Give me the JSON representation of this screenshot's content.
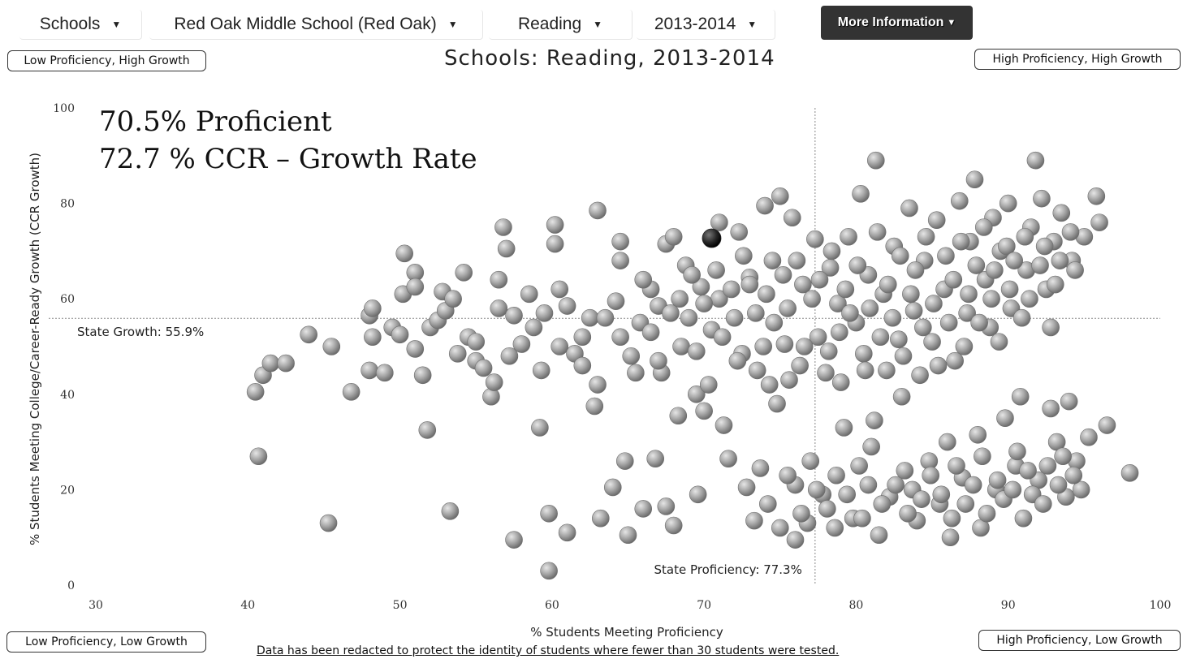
{
  "selectors": {
    "level": "Schools",
    "school": "Red Oak Middle School (Red Oak)",
    "subject": "Reading",
    "year": "2013-2014"
  },
  "more_info_label": "More Information",
  "quadrants": {
    "top_left": "Low Proficiency, High Growth",
    "top_right": "High Proficiency, High Growth",
    "bottom_left": "Low Proficiency, Low Growth",
    "bottom_right": "High Proficiency, Low Growth"
  },
  "page_title": "Schools: Reading, 2013-2014",
  "footnote": "Data has been redacted to protect the identity of students where fewer than 30 students were tested.",
  "colors": {
    "point": "#9a9a9a",
    "highlight": "#222222",
    "reference_line": "#888888"
  },
  "chart_data": {
    "type": "scatter",
    "title": "Schools: Reading, 2013-2014",
    "xlabel": "% Students Meeting Proficiency",
    "ylabel": "% Students Meeting College/Career-Ready Growth (CCR Growth)",
    "xlim": [
      30,
      100
    ],
    "ylim": [
      0,
      100
    ],
    "xticks": [
      30,
      40,
      50,
      60,
      70,
      80,
      90,
      100
    ],
    "yticks": [
      0,
      20,
      40,
      60,
      80,
      100
    ],
    "stat_lines": [
      "70.5% Proficient",
      "72.7 % CCR – Growth Rate"
    ],
    "reference_lines": {
      "x": {
        "value": 77.3,
        "label": "State Proficiency: 77.3%"
      },
      "y": {
        "value": 55.9,
        "label": "State Growth: 55.9%"
      }
    },
    "highlight": {
      "name": "Red Oak Middle School (Red Oak)",
      "x": 70.5,
      "y": 72.7
    },
    "grid": false,
    "points": [
      [
        40.5,
        40.5
      ],
      [
        40.7,
        27
      ],
      [
        41,
        44
      ],
      [
        41.5,
        46.5
      ],
      [
        42.5,
        46.5
      ],
      [
        44,
        52.5
      ],
      [
        45.3,
        13
      ],
      [
        45.5,
        50
      ],
      [
        46.8,
        40.5
      ],
      [
        48,
        56.5
      ],
      [
        48.2,
        58
      ],
      [
        48.2,
        52
      ],
      [
        48,
        45
      ],
      [
        49,
        44.5
      ],
      [
        49.5,
        54
      ],
      [
        50,
        52.5
      ],
      [
        50.3,
        69.5
      ],
      [
        50.2,
        61
      ],
      [
        51,
        65.5
      ],
      [
        51,
        62.5
      ],
      [
        51,
        49.5
      ],
      [
        51.5,
        44
      ],
      [
        51.8,
        32.5
      ],
      [
        52,
        54
      ],
      [
        52.5,
        55.5
      ],
      [
        52.8,
        61.5
      ],
      [
        53,
        57.5
      ],
      [
        53.3,
        15.5
      ],
      [
        53.5,
        60
      ],
      [
        53.8,
        48.5
      ],
      [
        54.2,
        65.5
      ],
      [
        54.5,
        52
      ],
      [
        55,
        47
      ],
      [
        55,
        51
      ],
      [
        55.5,
        45.5
      ],
      [
        56,
        39.5
      ],
      [
        56.2,
        42.5
      ],
      [
        56.5,
        58
      ],
      [
        56.5,
        64
      ],
      [
        56.8,
        75
      ],
      [
        57,
        70.5
      ],
      [
        57.2,
        48
      ],
      [
        57.5,
        56.5
      ],
      [
        57.5,
        9.5
      ],
      [
        58,
        50.5
      ],
      [
        58.5,
        61
      ],
      [
        58.8,
        54
      ],
      [
        59.2,
        33
      ],
      [
        59.3,
        45
      ],
      [
        59.5,
        57
      ],
      [
        59.8,
        15
      ],
      [
        59.8,
        3
      ],
      [
        60.2,
        75.5
      ],
      [
        60.2,
        71.5
      ],
      [
        60.5,
        62
      ],
      [
        60.5,
        50
      ],
      [
        61,
        11
      ],
      [
        61,
        58.5
      ],
      [
        61.5,
        48.5
      ],
      [
        62,
        46
      ],
      [
        62,
        52
      ],
      [
        62.5,
        56
      ],
      [
        62.8,
        37.5
      ],
      [
        63,
        42
      ],
      [
        63,
        78.5
      ],
      [
        63.2,
        14
      ],
      [
        63.5,
        56
      ],
      [
        64,
        20.5
      ],
      [
        64.2,
        59.5
      ],
      [
        64.5,
        52
      ],
      [
        64.5,
        72
      ],
      [
        64.5,
        68
      ],
      [
        64.8,
        26
      ],
      [
        65,
        10.5
      ],
      [
        65.2,
        48
      ],
      [
        65.5,
        44.5
      ],
      [
        65.8,
        55
      ],
      [
        66,
        16
      ],
      [
        66.5,
        62
      ],
      [
        66.8,
        26.5
      ],
      [
        67,
        58.5
      ],
      [
        67.2,
        44.5
      ],
      [
        67.5,
        71.5
      ],
      [
        67.5,
        16.5
      ],
      [
        68,
        12.5
      ],
      [
        68,
        73
      ],
      [
        68.3,
        35.5
      ],
      [
        68.5,
        50
      ],
      [
        68.8,
        67
      ],
      [
        69,
        56
      ],
      [
        69.5,
        40
      ],
      [
        69.6,
        19
      ],
      [
        69.8,
        62.5
      ],
      [
        70,
        36.5
      ],
      [
        70.3,
        42
      ],
      [
        70.5,
        53.5
      ],
      [
        71,
        76
      ],
      [
        71,
        60
      ],
      [
        71.3,
        33.5
      ],
      [
        71.6,
        26.5
      ],
      [
        72,
        56
      ],
      [
        72.3,
        74
      ],
      [
        72.5,
        48.5
      ],
      [
        72.8,
        20.5
      ],
      [
        73,
        64.5
      ],
      [
        73,
        63
      ],
      [
        73.3,
        13.5
      ],
      [
        73.5,
        45
      ],
      [
        73.7,
        24.5
      ],
      [
        74,
        79.5
      ],
      [
        74.3,
        42
      ],
      [
        74.5,
        68
      ],
      [
        74.8,
        38
      ],
      [
        75,
        81.5
      ],
      [
        75,
        12
      ],
      [
        75.3,
        50.5
      ],
      [
        75.5,
        58
      ],
      [
        75.8,
        77
      ],
      [
        76,
        9.5
      ],
      [
        76,
        21
      ],
      [
        76.3,
        46
      ],
      [
        76.5,
        63
      ],
      [
        76.8,
        13
      ],
      [
        77,
        26
      ],
      [
        77.3,
        72.5
      ],
      [
        77.5,
        52
      ],
      [
        77.8,
        19
      ],
      [
        78,
        44.5
      ],
      [
        78.3,
        66.5
      ],
      [
        78.6,
        12
      ],
      [
        78.8,
        59
      ],
      [
        79,
        42.5
      ],
      [
        79.2,
        33
      ],
      [
        79.5,
        73
      ],
      [
        79.8,
        14
      ],
      [
        80,
        55
      ],
      [
        80.2,
        25
      ],
      [
        80.3,
        82
      ],
      [
        80.5,
        48.5
      ],
      [
        80.8,
        65
      ],
      [
        81,
        29
      ],
      [
        81.2,
        34.5
      ],
      [
        81.3,
        89
      ],
      [
        81.5,
        10.5
      ],
      [
        81.8,
        61
      ],
      [
        82,
        45
      ],
      [
        82.2,
        18.5
      ],
      [
        82.5,
        71
      ],
      [
        82.8,
        51.5
      ],
      [
        83,
        39.5
      ],
      [
        83.2,
        24
      ],
      [
        83.5,
        79
      ],
      [
        83.8,
        57.5
      ],
      [
        84,
        13.5
      ],
      [
        84.2,
        44
      ],
      [
        84.5,
        68
      ],
      [
        84.8,
        26
      ],
      [
        85,
        51
      ],
      [
        85.3,
        76.5
      ],
      [
        85.5,
        17
      ],
      [
        85.8,
        62
      ],
      [
        86,
        30
      ],
      [
        86.2,
        10
      ],
      [
        86.5,
        47
      ],
      [
        86.8,
        80.5
      ],
      [
        87,
        22.5
      ],
      [
        87.3,
        57
      ],
      [
        87.5,
        72
      ],
      [
        87.8,
        85
      ],
      [
        88,
        31.5
      ],
      [
        88.2,
        12
      ],
      [
        88.5,
        64
      ],
      [
        88.8,
        54
      ],
      [
        89,
        77
      ],
      [
        89.2,
        20
      ],
      [
        89.5,
        70
      ],
      [
        89.8,
        35
      ],
      [
        90,
        80
      ],
      [
        90.2,
        58
      ],
      [
        90.5,
        25
      ],
      [
        90.8,
        39.5
      ],
      [
        91,
        14
      ],
      [
        91.2,
        66
      ],
      [
        91.5,
        75
      ],
      [
        91.8,
        89
      ],
      [
        92,
        22
      ],
      [
        92.2,
        81
      ],
      [
        92.5,
        62
      ],
      [
        92.8,
        37
      ],
      [
        92.8,
        54
      ],
      [
        93,
        72
      ],
      [
        93.2,
        30
      ],
      [
        93.5,
        78
      ],
      [
        93.8,
        18.5
      ],
      [
        94,
        38.5
      ],
      [
        94.2,
        68
      ],
      [
        94.5,
        26
      ],
      [
        94.8,
        20
      ],
      [
        95,
        73
      ],
      [
        95.3,
        31
      ],
      [
        95.8,
        81.5
      ],
      [
        96,
        76
      ],
      [
        96.5,
        33.5
      ],
      [
        98,
        23.5
      ],
      [
        66,
        64
      ],
      [
        66.5,
        53
      ],
      [
        67,
        47
      ],
      [
        67.8,
        57
      ],
      [
        68.4,
        60
      ],
      [
        69.2,
        65
      ],
      [
        69.5,
        49
      ],
      [
        70,
        59
      ],
      [
        70.8,
        66
      ],
      [
        71.2,
        52
      ],
      [
        71.8,
        62
      ],
      [
        72.2,
        47
      ],
      [
        72.6,
        69
      ],
      [
        73.4,
        57
      ],
      [
        73.9,
        50
      ],
      [
        74.1,
        61
      ],
      [
        74.6,
        55
      ],
      [
        75.2,
        65
      ],
      [
        75.6,
        43
      ],
      [
        76.1,
        68
      ],
      [
        76.6,
        50
      ],
      [
        77.1,
        60
      ],
      [
        77.6,
        64
      ],
      [
        78.2,
        49
      ],
      [
        78.4,
        70
      ],
      [
        78.9,
        53
      ],
      [
        79.3,
        62
      ],
      [
        79.6,
        57
      ],
      [
        80.1,
        67
      ],
      [
        80.6,
        45
      ],
      [
        80.9,
        58
      ],
      [
        81.4,
        74
      ],
      [
        81.6,
        52
      ],
      [
        82.1,
        63
      ],
      [
        82.4,
        56
      ],
      [
        82.9,
        69
      ],
      [
        83.1,
        48
      ],
      [
        83.6,
        61
      ],
      [
        83.9,
        66
      ],
      [
        84.4,
        54
      ],
      [
        84.6,
        73
      ],
      [
        85.1,
        59
      ],
      [
        85.4,
        46
      ],
      [
        85.9,
        69
      ],
      [
        86.1,
        55
      ],
      [
        86.4,
        64
      ],
      [
        86.9,
        72
      ],
      [
        87.1,
        50
      ],
      [
        87.4,
        61
      ],
      [
        87.9,
        67
      ],
      [
        88.1,
        55
      ],
      [
        88.4,
        75
      ],
      [
        88.9,
        60
      ],
      [
        89.1,
        66
      ],
      [
        89.4,
        51
      ],
      [
        89.9,
        71
      ],
      [
        90.1,
        62
      ],
      [
        90.4,
        68
      ],
      [
        90.9,
        56
      ],
      [
        91.1,
        73
      ],
      [
        91.4,
        60
      ],
      [
        92.1,
        67
      ],
      [
        92.4,
        71
      ],
      [
        93.1,
        63
      ],
      [
        93.4,
        68
      ],
      [
        94.1,
        74
      ],
      [
        94.4,
        66
      ],
      [
        74.2,
        17
      ],
      [
        75.5,
        23
      ],
      [
        76.4,
        15
      ],
      [
        77.4,
        20
      ],
      [
        78.1,
        16
      ],
      [
        78.7,
        23
      ],
      [
        79.4,
        19
      ],
      [
        80.4,
        14
      ],
      [
        80.8,
        21
      ],
      [
        81.7,
        17
      ],
      [
        82.6,
        21
      ],
      [
        83.4,
        15
      ],
      [
        83.7,
        20
      ],
      [
        84.3,
        18
      ],
      [
        84.9,
        23
      ],
      [
        85.6,
        19
      ],
      [
        86.3,
        14
      ],
      [
        86.6,
        25
      ],
      [
        87.2,
        17
      ],
      [
        87.7,
        21
      ],
      [
        88.3,
        27
      ],
      [
        88.6,
        15
      ],
      [
        89.3,
        22
      ],
      [
        89.7,
        18
      ],
      [
        90.3,
        20
      ],
      [
        90.6,
        28
      ],
      [
        91.3,
        24
      ],
      [
        91.6,
        19
      ],
      [
        92.3,
        17
      ],
      [
        92.6,
        25
      ],
      [
        93.3,
        21
      ],
      [
        93.6,
        27
      ],
      [
        94.3,
        23
      ]
    ]
  }
}
